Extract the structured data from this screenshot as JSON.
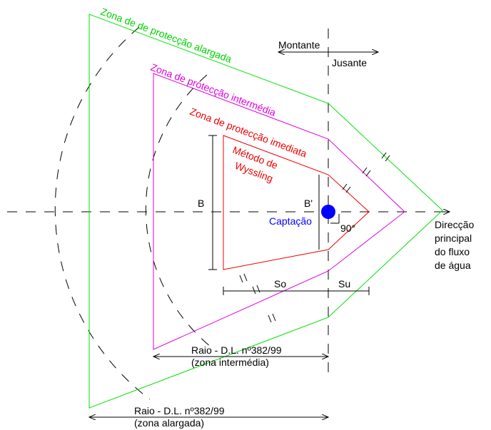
{
  "labels": {
    "zone_wide": "Zona de  de protecção alargada",
    "zone_mid": "Zona de protecção intermédia",
    "zone_near": "Zona de protecção imediata",
    "method_1": "Método de",
    "method_2": "Wyssling",
    "upstream": "Montante",
    "downstream": "Jusante",
    "b": "B",
    "b_prime": "B'",
    "intake": "Captação",
    "angle": "90°",
    "flow": [
      "Direcção",
      "principal",
      "do fluxo",
      "de água"
    ],
    "so": "So",
    "su": "Su",
    "radius_mid": [
      "Raio - D.L. nº382/99",
      "(zona intermédia)"
    ],
    "radius_wide": [
      "Raio - D.L. nº382/99",
      "(zona alargada)"
    ]
  }
}
